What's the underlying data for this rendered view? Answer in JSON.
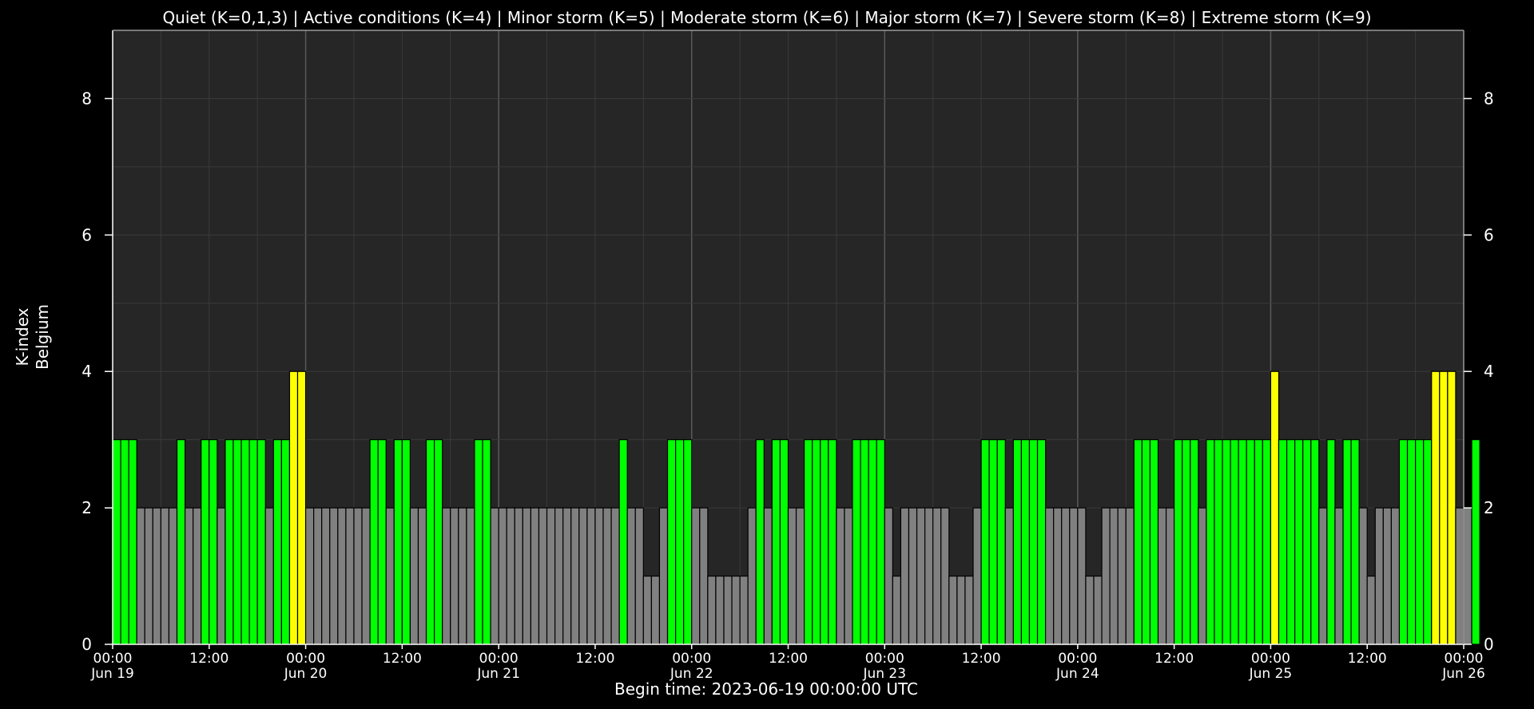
{
  "legend_text": "Quiet (K=0,1,3) | Active conditions (K=4) | Minor storm (K=5) | Moderate storm (K=6) | Major storm (K=7) | Severe storm (K=8) | Extreme storm (K=9)",
  "footer_text": "Begin time: 2023-06-19 00:00:00 UTC",
  "colors": {
    "background": "#000000",
    "plot_area": "#262626",
    "axis": "#ffffff",
    "grid_major": "#5a5a5a",
    "grid_minor": "#3a3a3a",
    "quiet_low": "#808080",
    "quiet_3": "#00ff00",
    "active": "#ffff00"
  },
  "chart_data": {
    "type": "bar",
    "title": "Quiet (K=0,1,3) | Active conditions (K=4) | Minor storm (K=5) | Moderate storm (K=6) | Major storm (K=7) | Severe storm (K=8) | Extreme storm (K=9)",
    "ylabel_lines": [
      "K-index",
      "Belgium"
    ],
    "xlabel": "Begin time: 2023-06-19 00:00:00 UTC",
    "ylim": [
      0,
      9
    ],
    "y_ticks": [
      0,
      2,
      4,
      6,
      8
    ],
    "x_range_hours": [
      0,
      168
    ],
    "interval_hours": 1,
    "x_tick_labels": [
      {
        "hour": 0,
        "time": "00:00",
        "date": "Jun 19"
      },
      {
        "hour": 12,
        "time": "12:00",
        "date": ""
      },
      {
        "hour": 24,
        "time": "00:00",
        "date": "Jun 20"
      },
      {
        "hour": 36,
        "time": "12:00",
        "date": ""
      },
      {
        "hour": 48,
        "time": "00:00",
        "date": "Jun 21"
      },
      {
        "hour": 60,
        "time": "12:00",
        "date": ""
      },
      {
        "hour": 72,
        "time": "00:00",
        "date": "Jun 22"
      },
      {
        "hour": 84,
        "time": "12:00",
        "date": ""
      },
      {
        "hour": 96,
        "time": "00:00",
        "date": "Jun 23"
      },
      {
        "hour": 108,
        "time": "12:00",
        "date": ""
      },
      {
        "hour": 120,
        "time": "00:00",
        "date": "Jun 24"
      },
      {
        "hour": 132,
        "time": "12:00",
        "date": ""
      },
      {
        "hour": 144,
        "time": "00:00",
        "date": "Jun 25"
      },
      {
        "hour": 156,
        "time": "12:00",
        "date": ""
      },
      {
        "hour": 168,
        "time": "00:00",
        "date": "Jun 26"
      }
    ],
    "values": [
      3,
      3,
      3,
      2,
      2,
      2,
      2,
      2,
      3,
      2,
      2,
      3,
      3,
      2,
      3,
      3,
      3,
      3,
      3,
      2,
      3,
      3,
      4,
      4,
      2,
      2,
      2,
      2,
      2,
      2,
      2,
      2,
      3,
      3,
      2,
      3,
      3,
      2,
      2,
      3,
      3,
      2,
      2,
      2,
      2,
      3,
      3,
      2,
      2,
      2,
      2,
      2,
      2,
      2,
      2,
      2,
      2,
      2,
      2,
      2,
      2,
      2,
      2,
      3,
      2,
      2,
      1,
      1,
      2,
      3,
      3,
      3,
      2,
      2,
      1,
      1,
      1,
      1,
      1,
      2,
      3,
      2,
      3,
      3,
      2,
      2,
      3,
      3,
      3,
      3,
      2,
      2,
      3,
      3,
      3,
      3,
      2,
      1,
      2,
      2,
      2,
      2,
      2,
      2,
      1,
      1,
      1,
      2,
      3,
      3,
      3,
      2,
      3,
      3,
      3,
      3,
      2,
      2,
      2,
      2,
      2,
      1,
      1,
      2,
      2,
      2,
      2,
      3,
      3,
      3,
      2,
      2,
      3,
      3,
      3,
      2,
      3,
      3,
      3,
      3,
      3,
      3,
      3,
      3,
      4,
      3,
      3,
      3,
      3,
      3,
      2,
      3,
      2,
      3,
      3,
      2,
      1,
      2,
      2,
      2,
      3,
      3,
      3,
      3,
      4,
      4,
      4,
      2,
      2,
      3
    ]
  }
}
